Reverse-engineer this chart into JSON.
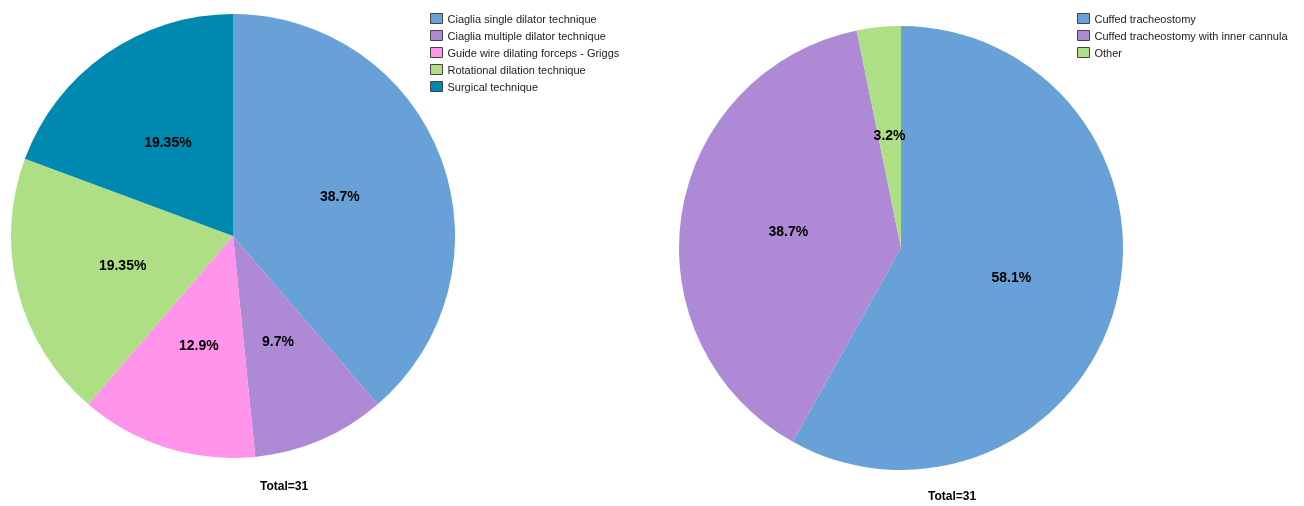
{
  "chart_data": [
    {
      "type": "pie",
      "categories": [
        "Ciaglia single dilator technique",
        "Ciaglia multiple dilator technique",
        "Guide wire dilating forceps - Griggs",
        "Rotational dilation technique",
        "Surgical technique"
      ],
      "values": [
        38.7,
        9.7,
        12.9,
        19.35,
        19.35
      ],
      "colors": [
        "#67a1d8",
        "#ae8ad6",
        "#ff94ea",
        "#aedf84",
        "#0089b0"
      ],
      "value_labels": [
        "38.7%",
        "9.7%",
        "12.9%",
        "19.35%",
        "19.35%"
      ],
      "legend": "top right",
      "annotations": [
        "Total=31"
      ]
    },
    {
      "type": "pie",
      "categories": [
        "Cuffed tracheostomy",
        "Cuffed tracheostomy with inner cannula",
        "Other"
      ],
      "values": [
        58.1,
        38.7,
        3.2
      ],
      "colors": [
        "#67a1d8",
        "#ae8ad6",
        "#aedf84"
      ],
      "value_labels": [
        "58.1%",
        "38.7%",
        "3.2%"
      ],
      "legend": "top right",
      "annotations": [
        "Total=31"
      ]
    }
  ]
}
